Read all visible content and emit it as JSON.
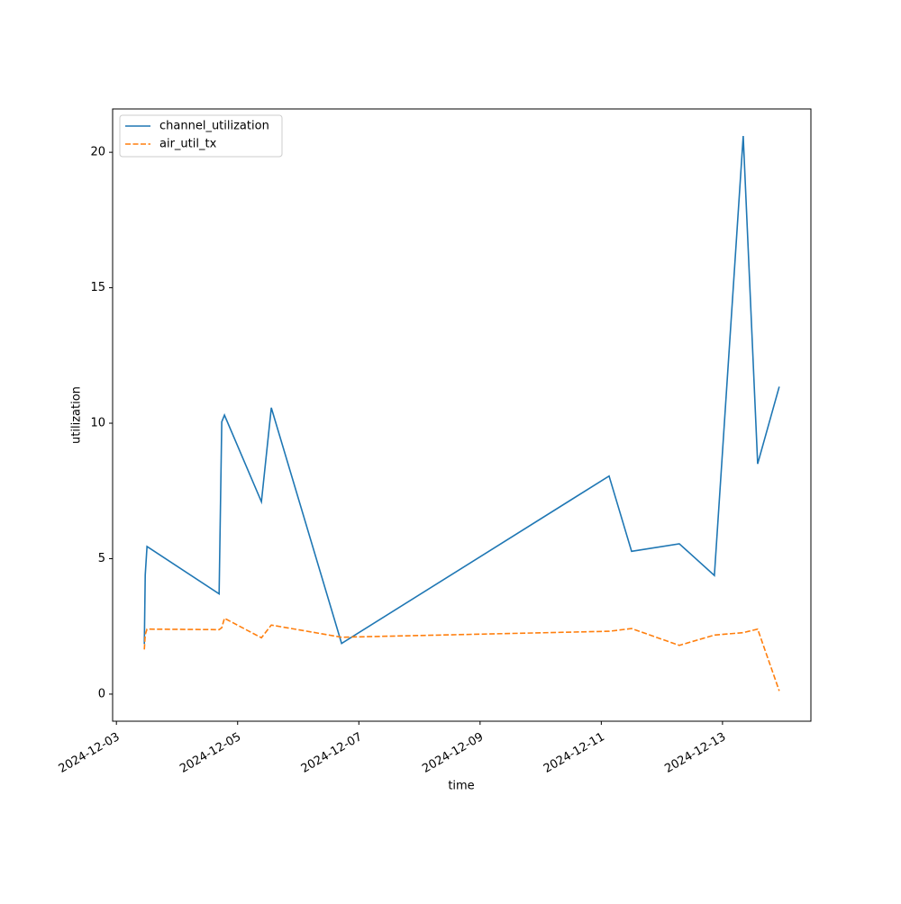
{
  "chart_data": {
    "type": "line",
    "x_label": "time",
    "y_label": "utilization",
    "x": [
      "2024-12-03T11:03",
      "2024-12-03T11:25",
      "2024-12-03T12:07",
      "2024-12-04T16:40",
      "2024-12-04T17:43",
      "2024-12-04T18:47",
      "2024-12-05T09:25",
      "2024-12-05T13:20",
      "2024-12-06T17:10",
      "2024-12-11T03:05",
      "2024-12-11T12:00",
      "2024-12-12T06:53",
      "2024-12-12T20:47",
      "2024-12-13T08:12",
      "2024-12-13T13:55",
      "2024-12-13T22:28"
    ],
    "series": [
      {
        "name": "channel_utilization",
        "color": "#1f77b4",
        "linestyle": "solid",
        "values": [
          1.85,
          4.4,
          5.45,
          3.7,
          10.05,
          10.3,
          7.1,
          10.57,
          1.87,
          8.05,
          5.27,
          5.55,
          4.38,
          20.6,
          8.5,
          11.35
        ]
      },
      {
        "name": "air_util_tx",
        "color": "#ff7f0e",
        "linestyle": "dashed",
        "values": [
          1.65,
          2.2,
          2.4,
          2.38,
          2.45,
          2.8,
          2.08,
          2.55,
          2.1,
          2.32,
          2.42,
          1.8,
          2.18,
          2.27,
          2.4,
          0.12
        ]
      }
    ],
    "xlim": [
      "2024-12-02T22:30",
      "2024-12-14T11:00"
    ],
    "xticks": [
      "2024-12-03",
      "2024-12-05",
      "2024-12-07",
      "2024-12-09",
      "2024-12-11",
      "2024-12-13"
    ],
    "ylim": [
      -1.0,
      21.6
    ],
    "yticks": [
      0,
      5,
      10,
      15,
      20
    ],
    "grid": false,
    "legend": "upper-left"
  }
}
